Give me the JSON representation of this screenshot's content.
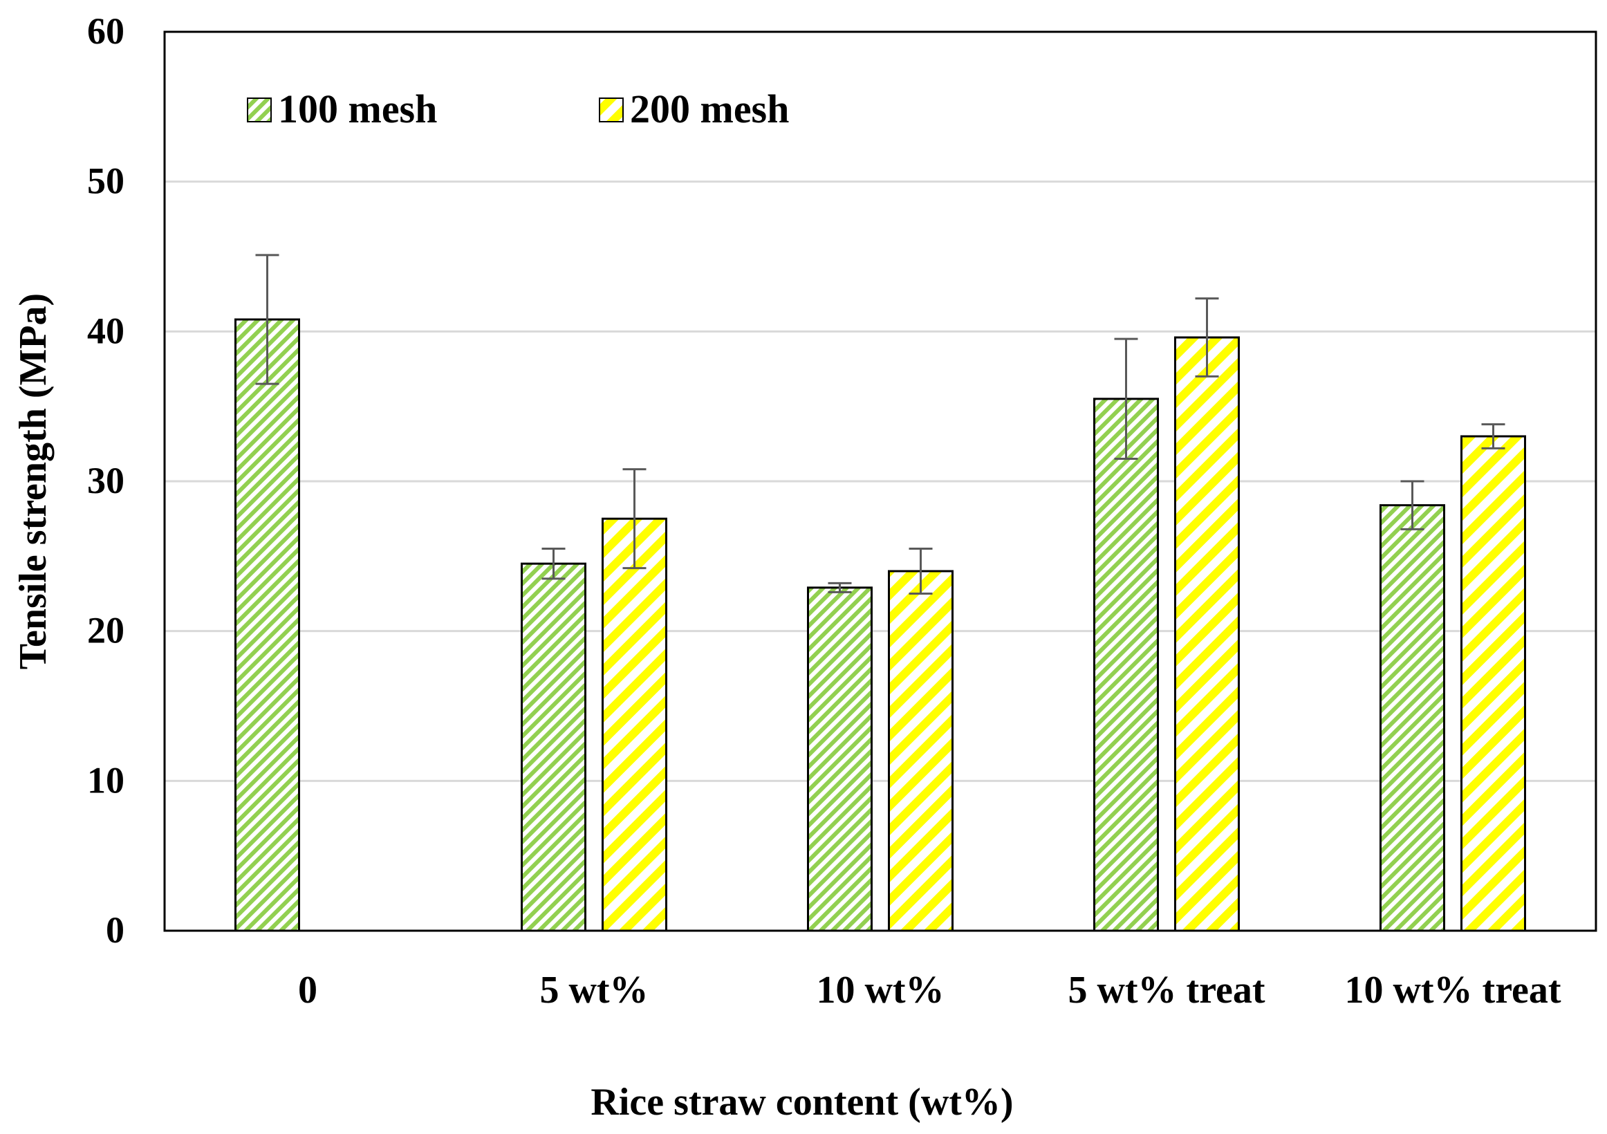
{
  "chart_data": {
    "type": "bar",
    "title": "",
    "xlabel": "Rice straw content (wt%)",
    "ylabel": "Tensile strength (MPa)",
    "ylim": [
      0,
      60
    ],
    "yticks": [
      0,
      10,
      20,
      30,
      40,
      50,
      60
    ],
    "grid": true,
    "legend_position": "top-left",
    "categories": [
      "0",
      "5 wt%",
      "10 wt%",
      "5 wt% treat",
      "10 wt% treat"
    ],
    "series": [
      {
        "name": "100 mesh",
        "color": "#92d050",
        "pattern": "diagonal-stripes",
        "values": [
          40.8,
          24.5,
          22.9,
          35.5,
          28.4
        ],
        "errors": [
          4.3,
          1.0,
          0.3,
          4.0,
          1.6
        ]
      },
      {
        "name": "200 mesh",
        "color": "#ffff00",
        "pattern": "diagonal-stripes",
        "values": [
          null,
          27.5,
          24.0,
          39.6,
          33.0
        ],
        "errors": [
          null,
          3.3,
          1.5,
          2.6,
          0.8
        ]
      }
    ]
  }
}
